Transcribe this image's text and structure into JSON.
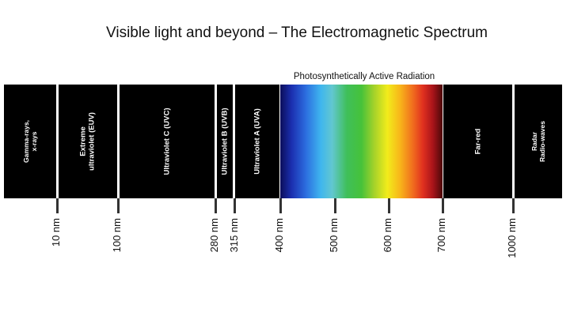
{
  "title": "Visible light and beyond – The Electromagnetic Spectrum",
  "par_label": "Photosynthetically Active Radiation",
  "bands": [
    {
      "name": "gamma-xray",
      "lines": [
        "Gamma-rays,",
        "x-rays"
      ]
    },
    {
      "name": "euv",
      "lines": [
        "Extreme",
        "ultraviolet (EUV)"
      ]
    },
    {
      "name": "uvc",
      "lines": [
        "Ultraviolet C (UVC)"
      ]
    },
    {
      "name": "uvb",
      "lines": [
        "Ultraviolet B (UVB)"
      ]
    },
    {
      "name": "uva",
      "lines": [
        "Ultraviolet A (UVA)"
      ]
    },
    {
      "name": "visible",
      "lines": []
    },
    {
      "name": "far-red",
      "lines": [
        "Far-red"
      ]
    },
    {
      "name": "radio",
      "lines": [
        "Radar",
        "Radio-waves"
      ]
    }
  ],
  "ticks": [
    "10 nm",
    "100 nm",
    "280 nm",
    "315 nm",
    "400 nm",
    "500 nm",
    "600 nm",
    "700 nm",
    "1000 nm"
  ]
}
